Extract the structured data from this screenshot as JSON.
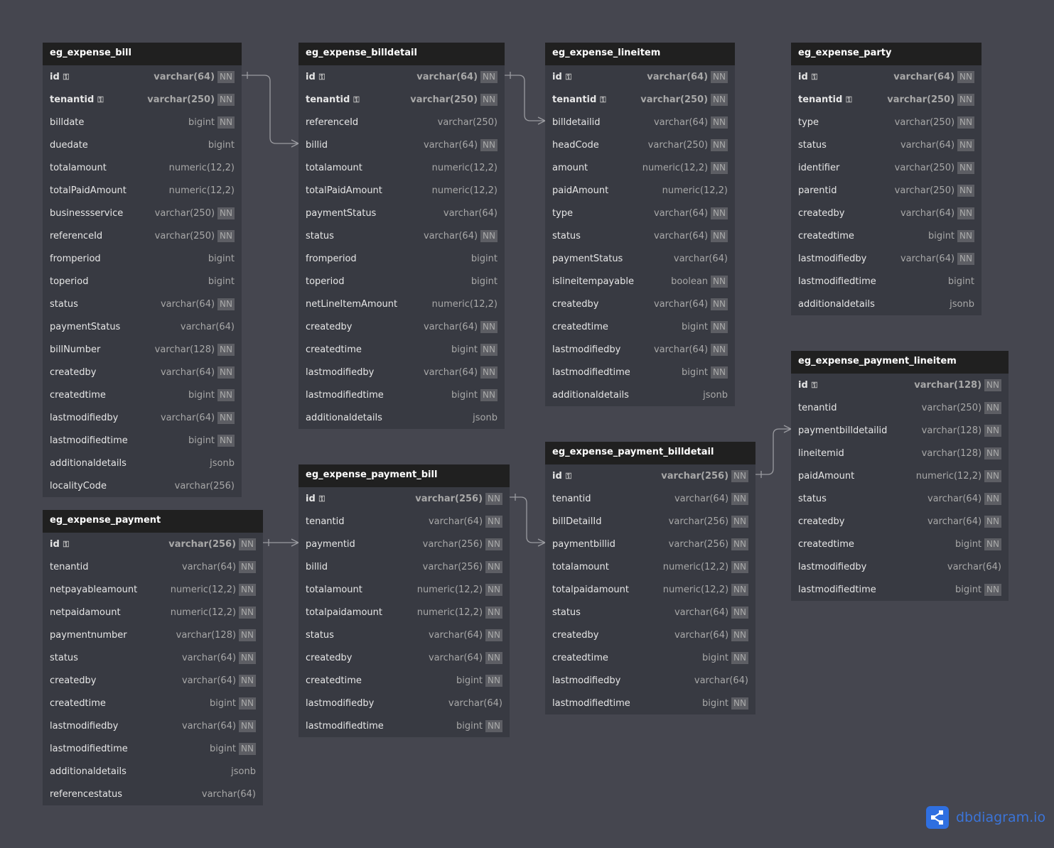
{
  "tables": [
    {
      "name": "eg_expense_bill",
      "fields": [
        [
          "id",
          "varchar(64)",
          1,
          1
        ],
        [
          "tenantid",
          "varchar(250)",
          1,
          1
        ],
        [
          "billdate",
          "bigint",
          1,
          0
        ],
        [
          "duedate",
          "bigint",
          0,
          0
        ],
        [
          "totalamount",
          "numeric(12,2)",
          0,
          0
        ],
        [
          "totalPaidAmount",
          "numeric(12,2)",
          0,
          0
        ],
        [
          "businessservice",
          "varchar(250)",
          1,
          0
        ],
        [
          "referenceId",
          "varchar(250)",
          1,
          0
        ],
        [
          "fromperiod",
          "bigint",
          0,
          0
        ],
        [
          "toperiod",
          "bigint",
          0,
          0
        ],
        [
          "status",
          "varchar(64)",
          1,
          0
        ],
        [
          "paymentStatus",
          "varchar(64)",
          0,
          0
        ],
        [
          "billNumber",
          "varchar(128)",
          1,
          0
        ],
        [
          "createdby",
          "varchar(64)",
          1,
          0
        ],
        [
          "createdtime",
          "bigint",
          1,
          0
        ],
        [
          "lastmodifiedby",
          "varchar(64)",
          1,
          0
        ],
        [
          "lastmodifiedtime",
          "bigint",
          1,
          0
        ],
        [
          "additionaldetails",
          "jsonb",
          0,
          0
        ],
        [
          "localityCode",
          "varchar(256)",
          0,
          0
        ]
      ]
    },
    {
      "name": "eg_expense_billdetail",
      "fields": [
        [
          "id",
          "varchar(64)",
          1,
          1
        ],
        [
          "tenantid",
          "varchar(250)",
          1,
          1
        ],
        [
          "referenceId",
          "varchar(250)",
          0,
          0
        ],
        [
          "billid",
          "varchar(64)",
          1,
          0
        ],
        [
          "totalamount",
          "numeric(12,2)",
          0,
          0
        ],
        [
          "totalPaidAmount",
          "numeric(12,2)",
          0,
          0
        ],
        [
          "paymentStatus",
          "varchar(64)",
          0,
          0
        ],
        [
          "status",
          "varchar(64)",
          1,
          0
        ],
        [
          "fromperiod",
          "bigint",
          0,
          0
        ],
        [
          "toperiod",
          "bigint",
          0,
          0
        ],
        [
          "netLineItemAmount",
          "numeric(12,2)",
          0,
          0
        ],
        [
          "createdby",
          "varchar(64)",
          1,
          0
        ],
        [
          "createdtime",
          "bigint",
          1,
          0
        ],
        [
          "lastmodifiedby",
          "varchar(64)",
          1,
          0
        ],
        [
          "lastmodifiedtime",
          "bigint",
          1,
          0
        ],
        [
          "additionaldetails",
          "jsonb",
          0,
          0
        ]
      ]
    },
    {
      "name": "eg_expense_lineitem",
      "fields": [
        [
          "id",
          "varchar(64)",
          1,
          1
        ],
        [
          "tenantid",
          "varchar(250)",
          1,
          1
        ],
        [
          "billdetailid",
          "varchar(64)",
          1,
          0
        ],
        [
          "headCode",
          "varchar(250)",
          1,
          0
        ],
        [
          "amount",
          "numeric(12,2)",
          1,
          0
        ],
        [
          "paidAmount",
          "numeric(12,2)",
          0,
          0
        ],
        [
          "type",
          "varchar(64)",
          1,
          0
        ],
        [
          "status",
          "varchar(64)",
          1,
          0
        ],
        [
          "paymentStatus",
          "varchar(64)",
          0,
          0
        ],
        [
          "islineitempayable",
          "boolean",
          1,
          0
        ],
        [
          "createdby",
          "varchar(64)",
          1,
          0
        ],
        [
          "createdtime",
          "bigint",
          1,
          0
        ],
        [
          "lastmodifiedby",
          "varchar(64)",
          1,
          0
        ],
        [
          "lastmodifiedtime",
          "bigint",
          1,
          0
        ],
        [
          "additionaldetails",
          "jsonb",
          0,
          0
        ]
      ]
    },
    {
      "name": "eg_expense_party",
      "fields": [
        [
          "id",
          "varchar(64)",
          1,
          1
        ],
        [
          "tenantid",
          "varchar(250)",
          1,
          1
        ],
        [
          "type",
          "varchar(250)",
          1,
          0
        ],
        [
          "status",
          "varchar(64)",
          1,
          0
        ],
        [
          "identifier",
          "varchar(250)",
          1,
          0
        ],
        [
          "parentid",
          "varchar(250)",
          1,
          0
        ],
        [
          "createdby",
          "varchar(64)",
          1,
          0
        ],
        [
          "createdtime",
          "bigint",
          1,
          0
        ],
        [
          "lastmodifiedby",
          "varchar(64)",
          1,
          0
        ],
        [
          "lastmodifiedtime",
          "bigint",
          0,
          0
        ],
        [
          "additionaldetails",
          "jsonb",
          0,
          0
        ]
      ]
    },
    {
      "name": "eg_expense_payment_lineitem",
      "fields": [
        [
          "id",
          "varchar(128)",
          1,
          1
        ],
        [
          "tenantid",
          "varchar(250)",
          1,
          0
        ],
        [
          "paymentbilldetailid",
          "varchar(128)",
          1,
          0
        ],
        [
          "lineitemid",
          "varchar(128)",
          1,
          0
        ],
        [
          "paidAmount",
          "numeric(12,2)",
          1,
          0
        ],
        [
          "status",
          "varchar(64)",
          1,
          0
        ],
        [
          "createdby",
          "varchar(64)",
          1,
          0
        ],
        [
          "createdtime",
          "bigint",
          1,
          0
        ],
        [
          "lastmodifiedby",
          "varchar(64)",
          0,
          0
        ],
        [
          "lastmodifiedtime",
          "bigint",
          1,
          0
        ]
      ]
    },
    {
      "name": "eg_expense_payment_billdetail",
      "fields": [
        [
          "id",
          "varchar(256)",
          1,
          1
        ],
        [
          "tenantid",
          "varchar(64)",
          1,
          0
        ],
        [
          "billDetailId",
          "varchar(256)",
          1,
          0
        ],
        [
          "paymentbillid",
          "varchar(256)",
          1,
          0
        ],
        [
          "totalamount",
          "numeric(12,2)",
          1,
          0
        ],
        [
          "totalpaidamount",
          "numeric(12,2)",
          1,
          0
        ],
        [
          "status",
          "varchar(64)",
          1,
          0
        ],
        [
          "createdby",
          "varchar(64)",
          1,
          0
        ],
        [
          "createdtime",
          "bigint",
          1,
          0
        ],
        [
          "lastmodifiedby",
          "varchar(64)",
          0,
          0
        ],
        [
          "lastmodifiedtime",
          "bigint",
          1,
          0
        ]
      ]
    },
    {
      "name": "eg_expense_payment_bill",
      "fields": [
        [
          "id",
          "varchar(256)",
          1,
          1
        ],
        [
          "tenantid",
          "varchar(64)",
          1,
          0
        ],
        [
          "paymentid",
          "varchar(256)",
          1,
          0
        ],
        [
          "billid",
          "varchar(256)",
          1,
          0
        ],
        [
          "totalamount",
          "numeric(12,2)",
          1,
          0
        ],
        [
          "totalpaidamount",
          "numeric(12,2)",
          1,
          0
        ],
        [
          "status",
          "varchar(64)",
          1,
          0
        ],
        [
          "createdby",
          "varchar(64)",
          1,
          0
        ],
        [
          "createdtime",
          "bigint",
          1,
          0
        ],
        [
          "lastmodifiedby",
          "varchar(64)",
          0,
          0
        ],
        [
          "lastmodifiedtime",
          "bigint",
          1,
          0
        ]
      ]
    },
    {
      "name": "eg_expense_payment",
      "fields": [
        [
          "id",
          "varchar(256)",
          1,
          1
        ],
        [
          "tenantid",
          "varchar(64)",
          1,
          0
        ],
        [
          "netpayableamount",
          "numeric(12,2)",
          1,
          0
        ],
        [
          "netpaidamount",
          "numeric(12,2)",
          1,
          0
        ],
        [
          "paymentnumber",
          "varchar(128)",
          1,
          0
        ],
        [
          "status",
          "varchar(64)",
          1,
          0
        ],
        [
          "createdby",
          "varchar(64)",
          1,
          0
        ],
        [
          "createdtime",
          "bigint",
          1,
          0
        ],
        [
          "lastmodifiedby",
          "varchar(64)",
          1,
          0
        ],
        [
          "lastmodifiedtime",
          "bigint",
          1,
          0
        ],
        [
          "additionaldetails",
          "jsonb",
          0,
          0
        ],
        [
          "referencestatus",
          "varchar(64)",
          0,
          0
        ]
      ]
    }
  ],
  "nn_label": "NN",
  "logo": {
    "text": "dbdiagram.io",
    "color": "#2f6fe0"
  }
}
